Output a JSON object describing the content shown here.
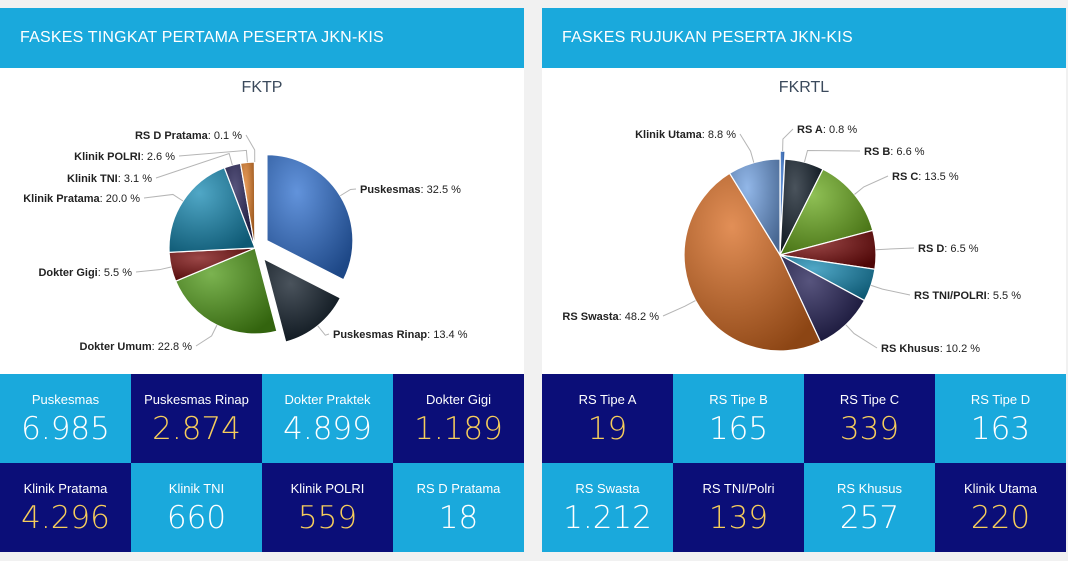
{
  "colors": {
    "header": "#1aa9dc",
    "tile_light": "#1aa9dc",
    "tile_dark": "#0b0e78",
    "value_gold": "#f6cd5b"
  },
  "left": {
    "header": "FASKES TINGKAT PERTAMA PESERTA JKN-KIS",
    "tiles": [
      {
        "label": "Puskesmas",
        "value": "6.985",
        "style": "light"
      },
      {
        "label": "Puskesmas Rinap",
        "value": "2.874",
        "style": "dark"
      },
      {
        "label": "Dokter Praktek",
        "value": "4.899",
        "style": "light"
      },
      {
        "label": "Dokter Gigi",
        "value": "1.189",
        "style": "dark"
      },
      {
        "label": "Klinik Pratama",
        "value": "4.296",
        "style": "dark"
      },
      {
        "label": "Klinik TNI",
        "value": "660",
        "style": "light"
      },
      {
        "label": "Klinik POLRI",
        "value": "559",
        "style": "dark"
      },
      {
        "label": "RS D Pratama",
        "value": "18",
        "style": "light"
      }
    ]
  },
  "right": {
    "header": "FASKES RUJUKAN PESERTA JKN-KIS",
    "tiles": [
      {
        "label": "RS Tipe A",
        "value": "19",
        "style": "dark"
      },
      {
        "label": "RS Tipe B",
        "value": "165",
        "style": "light"
      },
      {
        "label": "RS Tipe C",
        "value": "339",
        "style": "dark"
      },
      {
        "label": "RS Tipe D",
        "value": "163",
        "style": "light"
      },
      {
        "label": "RS Swasta",
        "value": "1.212",
        "style": "light"
      },
      {
        "label": "RS TNI/Polri",
        "value": "139",
        "style": "dark"
      },
      {
        "label": "RS Khusus",
        "value": "257",
        "style": "light"
      },
      {
        "label": "Klinik Utama",
        "value": "220",
        "style": "dark"
      }
    ]
  },
  "chart_data": [
    {
      "type": "pie",
      "title": "FKTP",
      "unit": "%",
      "slices": [
        {
          "name": "Puskesmas",
          "value": 32.5,
          "label": "32.5 %",
          "color": "#2e6fcf",
          "exploded": true
        },
        {
          "name": "Puskesmas Rinap",
          "value": 13.4,
          "label": "13.4 %",
          "color": "#0d1a26",
          "exploded": true
        },
        {
          "name": "Dokter Umum",
          "value": 22.8,
          "label": "22.8 %",
          "color": "#4f9a16"
        },
        {
          "name": "Dokter Gigi",
          "value": 5.5,
          "label": "5.5 %",
          "color": "#7a0a0a"
        },
        {
          "name": "Klinik Pratama",
          "value": 20.0,
          "label": "20.0 %",
          "color": "#1689b3"
        },
        {
          "name": "Klinik TNI",
          "value": 3.1,
          "label": "3.1 %",
          "color": "#1f1b52"
        },
        {
          "name": "Klinik POLRI",
          "value": 2.6,
          "label": "2.6 %",
          "color": "#e07b23"
        },
        {
          "name": "RS D Pratama",
          "value": 0.1,
          "label": "0.1 %",
          "color": "#5b8fd6"
        }
      ]
    },
    {
      "type": "pie",
      "title": "FKRTL",
      "unit": "%",
      "slices": [
        {
          "name": "RS A",
          "value": 0.8,
          "label": "0.8 %",
          "color": "#2e6fcf",
          "exploded": true
        },
        {
          "name": "RS B",
          "value": 6.6,
          "label": "6.6 %",
          "color": "#0d1a26"
        },
        {
          "name": "RS C",
          "value": 13.5,
          "label": "13.5 %",
          "color": "#6aab1c"
        },
        {
          "name": "RS D",
          "value": 6.5,
          "label": "6.5 %",
          "color": "#7a0a0a"
        },
        {
          "name": "RS TNI/POLRI",
          "value": 5.5,
          "label": "5.5 %",
          "color": "#1689b3"
        },
        {
          "name": "RS Khusus",
          "value": 10.2,
          "label": "10.2 %",
          "color": "#1f1b52"
        },
        {
          "name": "RS Swasta",
          "value": 48.2,
          "label": "48.2 %",
          "color": "#d86a1f"
        },
        {
          "name": "Klinik Utama",
          "value": 8.8,
          "label": "8.8 %",
          "color": "#6e9fe0"
        }
      ]
    }
  ]
}
